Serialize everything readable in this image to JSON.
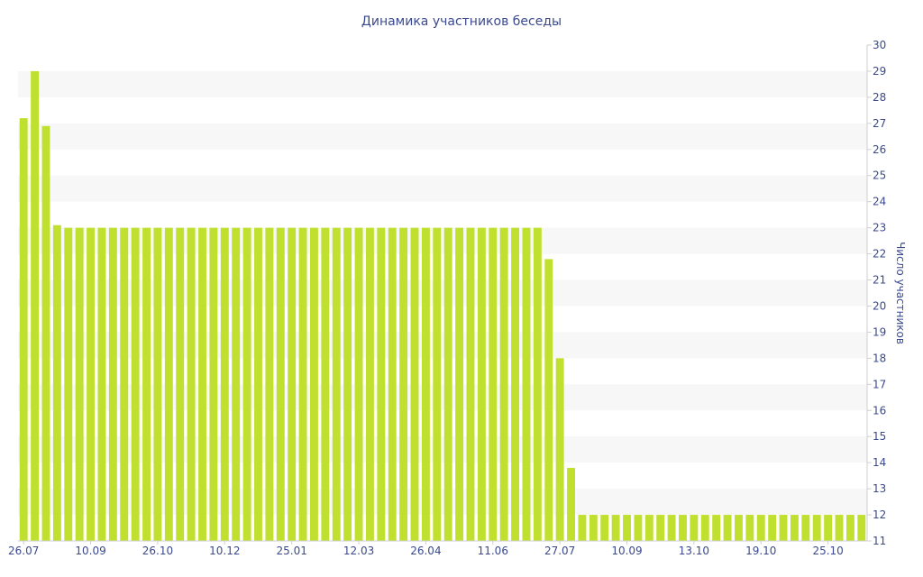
{
  "chart_data": {
    "type": "bar",
    "title": "Динамика участников беседы",
    "ylabel": "Число участников",
    "xlabel": "",
    "ylim": [
      11,
      30
    ],
    "y_ticks": [
      11,
      12,
      13,
      14,
      15,
      16,
      17,
      18,
      19,
      20,
      21,
      22,
      23,
      24,
      25,
      26,
      27,
      28,
      29,
      30
    ],
    "x_tick_labels": [
      {
        "label": "26.07",
        "index": 0
      },
      {
        "label": "10.09",
        "index": 6
      },
      {
        "label": "26.10",
        "index": 12
      },
      {
        "label": "10.12",
        "index": 18
      },
      {
        "label": "25.01",
        "index": 24
      },
      {
        "label": "12.03",
        "index": 30
      },
      {
        "label": "26.04",
        "index": 36
      },
      {
        "label": "11.06",
        "index": 42
      },
      {
        "label": "27.07",
        "index": 48
      },
      {
        "label": "10.09",
        "index": 54
      },
      {
        "label": "13.10",
        "index": 60
      },
      {
        "label": "19.10",
        "index": 66
      },
      {
        "label": "25.10",
        "index": 72
      }
    ],
    "values": [
      27.2,
      29,
      26.9,
      23.1,
      23,
      23,
      23,
      23,
      23,
      23,
      23,
      23,
      23,
      23,
      23,
      23,
      23,
      23,
      23,
      23,
      23,
      23,
      23,
      23,
      23,
      23,
      23,
      23,
      23,
      23,
      23,
      23,
      23,
      23,
      23,
      23,
      23,
      23,
      23,
      23,
      23,
      23,
      23,
      23,
      23,
      23,
      23,
      21.8,
      18,
      13.8,
      12,
      12,
      12,
      12,
      12,
      12,
      12,
      12,
      12,
      12,
      12,
      12,
      12,
      12,
      12,
      12,
      12,
      12,
      12,
      12,
      12,
      12,
      12,
      12,
      12,
      12
    ],
    "bar_color": "#c0e030",
    "stripe_color": "#f7f7f7",
    "text_color": "#3b4a8f",
    "grid": true,
    "legend": "none",
    "y_axis_position": "right"
  }
}
